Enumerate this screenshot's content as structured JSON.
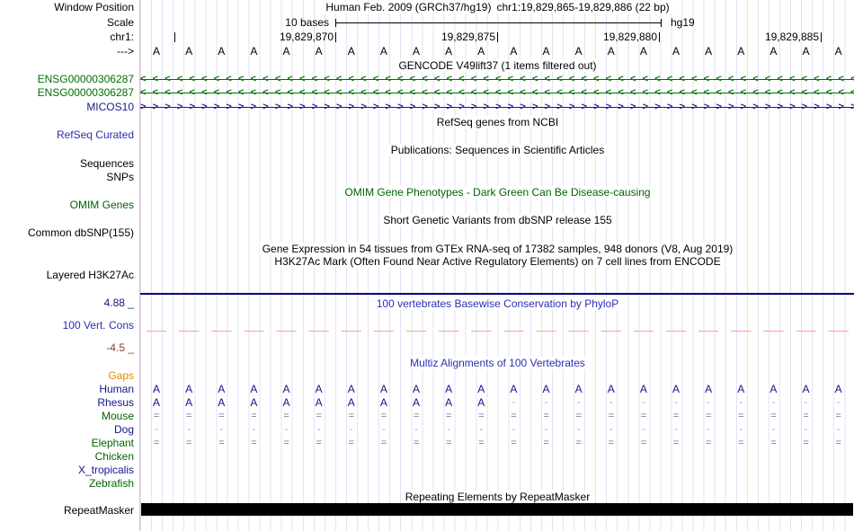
{
  "header": {
    "window_position_label": "Window Position",
    "assembly_title": "Human Feb. 2009 (GRCh37/hg19)",
    "position_title": "chr1:19,829,865-19,829,886 (22 bp)",
    "scale_label": "Scale",
    "scale_value": "10 bases",
    "assembly_short": "hg19",
    "chrom_label": "chr1:",
    "chrom_ticks": [
      "19,829,870",
      "19,829,875",
      "19,829,880",
      "19,829,885"
    ],
    "strand_arrow": "--->"
  },
  "sequence": {
    "bases": "AAAAAAAAAAAAAAAAAAAAAA"
  },
  "gencode": {
    "title": "GENCODE V49lift37 (1 items filtered out)",
    "items": [
      {
        "label": "ENSG00000306287",
        "direction": "<",
        "color": "#007000"
      },
      {
        "label": "ENSG00000306287",
        "direction": "<",
        "color": "#007000"
      },
      {
        "label": "MICOS10",
        "direction": ">",
        "color": "#1a1a8c"
      }
    ]
  },
  "refseq": {
    "title": "RefSeq genes from NCBI",
    "label": "RefSeq Curated"
  },
  "publications": {
    "title": "Publications: Sequences in Scientific Articles",
    "sequences_label": "Sequences",
    "snps_label": "SNPs"
  },
  "omim": {
    "title": "OMIM Gene Phenotypes - Dark Green Can Be Disease-causing",
    "label": "OMIM Genes"
  },
  "dbsnp": {
    "title": "Short Genetic Variants from dbSNP release 155",
    "label": "Common dbSNP(155)"
  },
  "gtex": {
    "title": "Gene Expression in 54 tissues from GTEx RNA-seq of 17382 samples, 948 donors (V8, Aug 2019)"
  },
  "h3k27ac": {
    "title": "H3K27Ac Mark (Often Found Near Active Regulatory Elements) on 7 cell lines from ENCODE",
    "label": "Layered H3K27Ac"
  },
  "conservation": {
    "title": "100 vertebrates Basewise Conservation by PhyloP",
    "label": "100 Vert. Cons",
    "max": "4.88 _",
    "min": "-4.5 _"
  },
  "multiz": {
    "title": "Multiz Alignments of 100 Vertebrates",
    "gaps_label": "Gaps",
    "species": [
      {
        "name": "Human",
        "label_color": "#14148c",
        "row": "AAAAAAAAAAAAAAAAAAAAAA"
      },
      {
        "name": "Rhesus",
        "label_color": "#14148c",
        "row": "AAAAAAAAAAA-----------"
      },
      {
        "name": "Mouse",
        "label_color": "#006400",
        "row": "======================"
      },
      {
        "name": "Dog",
        "label_color": "#14148c",
        "row": "----------------------"
      },
      {
        "name": "Elephant",
        "label_color": "#006400",
        "row": "======================"
      },
      {
        "name": "Chicken",
        "label_color": "#006400",
        "row": ""
      },
      {
        "name": "X_tropicalis",
        "label_color": "#14148c",
        "row": ""
      },
      {
        "name": "Zebrafish",
        "label_color": "#006400",
        "row": ""
      }
    ]
  },
  "repeatmasker": {
    "title": "Repeating Elements by RepeatMasker",
    "label": "RepeatMasker"
  },
  "colors": {
    "title_blue": "#2d2db4",
    "track_green": "#006400",
    "track_navy": "#14148c",
    "gaps_orange": "#e98a00",
    "min_maroon": "#8b4022",
    "grid_line": "#e2e2f6",
    "edge_pink": "#f5b6b6",
    "zero_dash_salmon": "#ff9b9b",
    "conservation_line": "#000080",
    "align_equals": "#7373ab",
    "align_dash": "#9d9dc6",
    "repeat_bar": "#000000"
  }
}
